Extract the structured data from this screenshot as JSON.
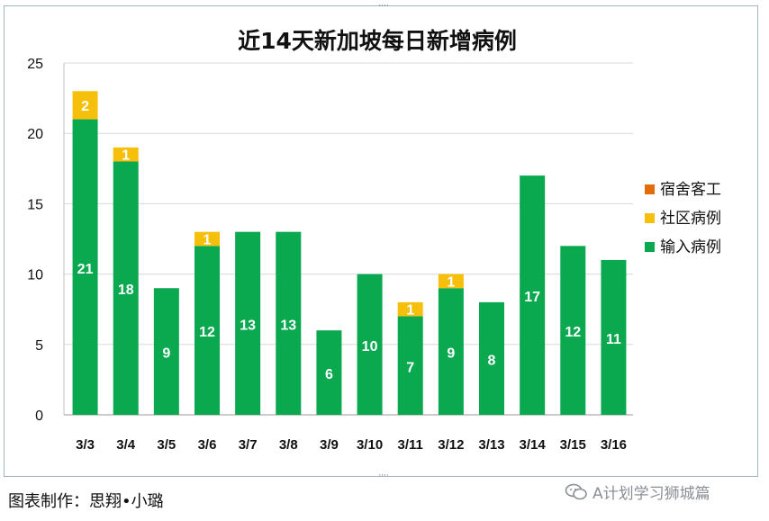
{
  "chart_data": {
    "type": "bar",
    "stacked": true,
    "title": "近14天新加坡每日新增病例",
    "categories": [
      "3/3",
      "3/4",
      "3/5",
      "3/6",
      "3/7",
      "3/8",
      "3/9",
      "3/10",
      "3/11",
      "3/12",
      "3/13",
      "3/14",
      "3/15",
      "3/16"
    ],
    "series": [
      {
        "name": "输入病例",
        "color": "#0aa84f",
        "values": [
          21,
          18,
          9,
          12,
          13,
          13,
          6,
          10,
          7,
          9,
          8,
          17,
          12,
          11
        ]
      },
      {
        "name": "社区病例",
        "color": "#f5bf0b",
        "values": [
          2,
          1,
          0,
          1,
          0,
          0,
          0,
          0,
          1,
          1,
          0,
          0,
          0,
          0
        ]
      },
      {
        "name": "宿舍客工",
        "color": "#e36c0a",
        "values": [
          0,
          0,
          0,
          0,
          0,
          0,
          0,
          0,
          0,
          0,
          0,
          0,
          0,
          0
        ]
      }
    ],
    "legend_order": [
      "宿舍客工",
      "社区病例",
      "输入病例"
    ],
    "legend_position": "right",
    "ylim": [
      0,
      25
    ],
    "yticks": [
      0,
      5,
      10,
      15,
      20,
      25
    ],
    "grid": true,
    "xlabel": "",
    "ylabel": ""
  },
  "footer": {
    "credit": "图表制作：思翔•小璐",
    "watermark": "A计划学习狮城篇"
  }
}
